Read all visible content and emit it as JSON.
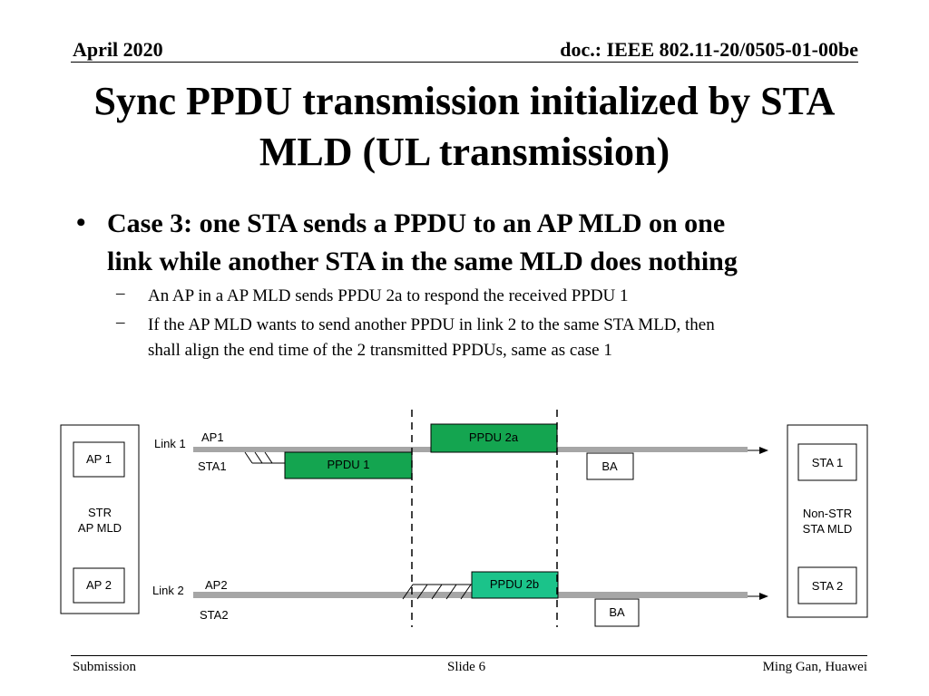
{
  "header": {
    "date": "April 2020",
    "doc": "doc.: IEEE 802.11-20/0505-01-00be"
  },
  "title": {
    "line1": "Sync PPDU transmission initialized by STA",
    "line2": "MLD (UL transmission)"
  },
  "bullets": {
    "main_marker": "•",
    "main_line1": "Case 3: one STA sends a PPDU to an AP MLD on one",
    "main_line2": "link while another STA in the same MLD does nothing",
    "sub_marker": "–",
    "sub1": "An AP in a AP MLD sends PPDU 2a to respond the received PPDU 1",
    "sub2_line1": "If the AP MLD wants to send another PPDU in link 2 to the same STA MLD, then",
    "sub2_line2": "shall align the end time of the 2 transmitted PPDUs, same as case 1"
  },
  "diagram": {
    "ap_mld": {
      "ap1": "AP 1",
      "label_line1": "STR",
      "label_line2": "AP MLD",
      "ap2": "AP 2"
    },
    "sta_mld": {
      "sta1": "STA 1",
      "label_line1": "Non-STR",
      "label_line2": "STA MLD",
      "sta2": "STA 2"
    },
    "link1": {
      "name": "Link 1",
      "ap": "AP1",
      "sta": "STA1",
      "ppdu_ap": "PPDU 2a",
      "ppdu_sta": "PPDU 1",
      "ack": "BA"
    },
    "link2": {
      "name": "Link 2",
      "ap": "AP2",
      "sta": "STA2",
      "ppdu_ap": "PPDU 2b",
      "ack": "BA"
    },
    "colors": {
      "ppdu_dark": "#14a550",
      "ppdu_light": "#1bc38a",
      "timeline": "#a6a6a6"
    }
  },
  "footer": {
    "left": "Submission",
    "center": "Slide 6",
    "right": "Ming Gan, Huawei"
  }
}
